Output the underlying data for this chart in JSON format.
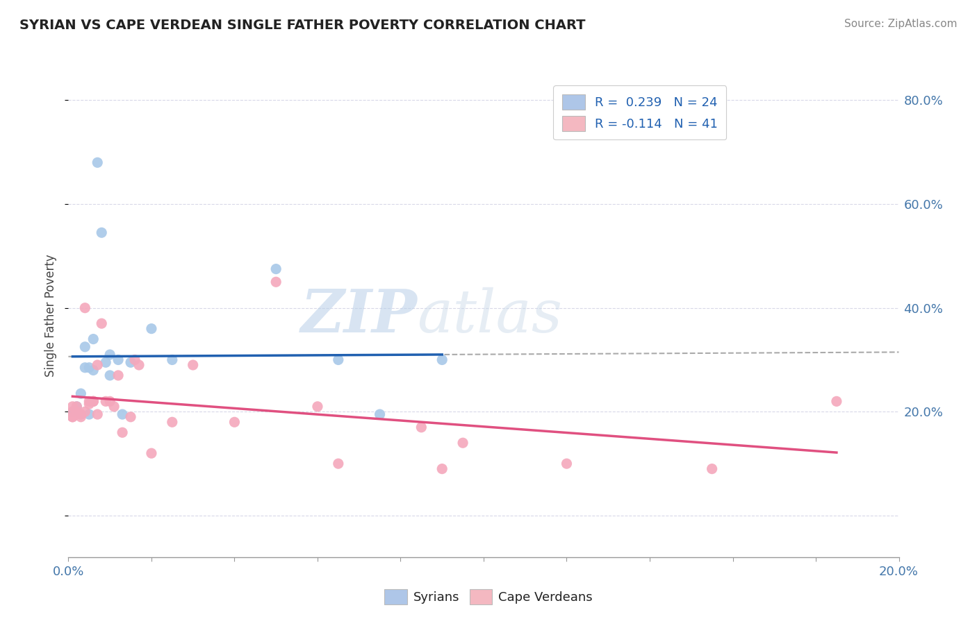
{
  "title": "SYRIAN VS CAPE VERDEAN SINGLE FATHER POVERTY CORRELATION CHART",
  "source": "Source: ZipAtlas.com",
  "ylabel": "Single Father Poverty",
  "y_ticks": [
    0.0,
    0.2,
    0.4,
    0.6,
    0.8
  ],
  "y_tick_labels": [
    "",
    "20.0%",
    "40.0%",
    "60.0%",
    "80.0%"
  ],
  "xlim": [
    0.0,
    0.2
  ],
  "ylim": [
    -0.08,
    0.85
  ],
  "legend_entries": [
    {
      "label": "R =  0.239   N = 24",
      "color": "#aec6e8"
    },
    {
      "label": "R = -0.114   N = 41",
      "color": "#f4b8c1"
    }
  ],
  "syrians_x": [
    0.001,
    0.002,
    0.003,
    0.003,
    0.004,
    0.004,
    0.005,
    0.005,
    0.006,
    0.006,
    0.007,
    0.008,
    0.009,
    0.01,
    0.01,
    0.012,
    0.013,
    0.015,
    0.02,
    0.025,
    0.05,
    0.065,
    0.075,
    0.09
  ],
  "syrians_y": [
    0.2,
    0.21,
    0.195,
    0.235,
    0.285,
    0.325,
    0.285,
    0.195,
    0.28,
    0.34,
    0.68,
    0.545,
    0.295,
    0.27,
    0.31,
    0.3,
    0.195,
    0.295,
    0.36,
    0.3,
    0.475,
    0.3,
    0.195,
    0.3
  ],
  "cape_verdeans_x": [
    0.001,
    0.001,
    0.001,
    0.001,
    0.002,
    0.002,
    0.002,
    0.002,
    0.003,
    0.003,
    0.004,
    0.004,
    0.005,
    0.005,
    0.006,
    0.006,
    0.006,
    0.007,
    0.007,
    0.008,
    0.009,
    0.01,
    0.011,
    0.012,
    0.013,
    0.015,
    0.016,
    0.017,
    0.02,
    0.025,
    0.03,
    0.04,
    0.05,
    0.06,
    0.065,
    0.085,
    0.09,
    0.095,
    0.12,
    0.155,
    0.185
  ],
  "cape_verdeans_y": [
    0.19,
    0.19,
    0.2,
    0.21,
    0.195,
    0.2,
    0.2,
    0.21,
    0.195,
    0.19,
    0.4,
    0.2,
    0.215,
    0.22,
    0.22,
    0.22,
    0.22,
    0.29,
    0.195,
    0.37,
    0.22,
    0.22,
    0.21,
    0.27,
    0.16,
    0.19,
    0.3,
    0.29,
    0.12,
    0.18,
    0.29,
    0.18,
    0.45,
    0.21,
    0.1,
    0.17,
    0.09,
    0.14,
    0.1,
    0.09,
    0.22
  ],
  "syrian_color": "#a8c8e8",
  "cape_verdean_color": "#f4a8bc",
  "syrian_line_color": "#2060b0",
  "cape_verdean_line_color": "#e05080",
  "dashed_line_color": "#aaaaaa",
  "watermark_text": "ZIP",
  "watermark_text2": "atlas",
  "background_color": "#ffffff",
  "plot_bg_color": "#ffffff",
  "grid_color": "#d8d8e8"
}
